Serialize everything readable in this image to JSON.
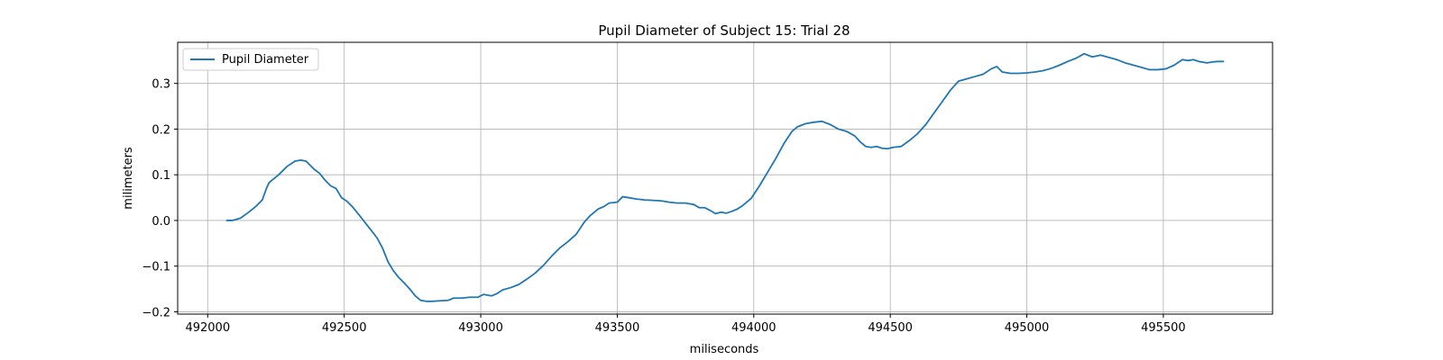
{
  "chart_data": {
    "type": "line",
    "title": "Pupil Diameter of Subject 15: Trial 28",
    "xlabel": "miliseconds",
    "ylabel": "milimeters",
    "xlim": [
      491890,
      495900
    ],
    "ylim": [
      -0.205,
      0.39
    ],
    "xticks": [
      492000,
      492500,
      493000,
      493500,
      494000,
      494500,
      495000,
      495500
    ],
    "yticks": [
      -0.2,
      -0.1,
      0.0,
      0.1,
      0.2,
      0.3
    ],
    "grid": true,
    "legend_position": "upper-left",
    "series": [
      {
        "name": "Pupil Diameter",
        "color": "#1f77b4",
        "x": [
          492070,
          492090,
          492120,
          492150,
          492175,
          492200,
          492215,
          492225,
          492235,
          492260,
          492290,
          492320,
          492340,
          492360,
          492390,
          492410,
          492430,
          492450,
          492470,
          492490,
          492510,
          492530,
          492560,
          492590,
          492620,
          492640,
          492660,
          492680,
          492700,
          492720,
          492740,
          492760,
          492780,
          492800,
          492820,
          492850,
          492880,
          492900,
          492930,
          492960,
          492990,
          493010,
          493040,
          493060,
          493080,
          493110,
          493140,
          493170,
          493200,
          493230,
          493260,
          493290,
          493320,
          493350,
          493380,
          493400,
          493430,
          493450,
          493470,
          493500,
          493520,
          493540,
          493570,
          493600,
          493630,
          493660,
          493690,
          493720,
          493750,
          493780,
          493800,
          493820,
          493840,
          493860,
          493880,
          493900,
          493920,
          493940,
          493960,
          493990,
          494020,
          494050,
          494080,
          494110,
          494140,
          494160,
          494190,
          494220,
          494250,
          494280,
          494310,
          494340,
          494370,
          494390,
          494410,
          494430,
          494450,
          494470,
          494490,
          494510,
          494540,
          494570,
          494600,
          494630,
          494660,
          494690,
          494720,
          494750,
          494780,
          494810,
          494840,
          494870,
          494890,
          494910,
          494940,
          494970,
          495000,
          495030,
          495060,
          495090,
          495120,
          495150,
          495180,
          495210,
          495240,
          495270,
          495300,
          495330,
          495360,
          495390,
          495420,
          495450,
          495480,
          495510,
          495540,
          495570,
          495590,
          495610,
          495630,
          495660,
          495680,
          495700,
          495720
        ],
        "y": [
          0.0,
          0.0,
          0.005,
          0.018,
          0.03,
          0.045,
          0.07,
          0.083,
          0.088,
          0.1,
          0.118,
          0.13,
          0.132,
          0.13,
          0.112,
          0.103,
          0.088,
          0.076,
          0.07,
          0.05,
          0.042,
          0.03,
          0.008,
          -0.015,
          -0.038,
          -0.06,
          -0.09,
          -0.11,
          -0.125,
          -0.137,
          -0.15,
          -0.165,
          -0.175,
          -0.177,
          -0.177,
          -0.176,
          -0.175,
          -0.17,
          -0.17,
          -0.168,
          -0.168,
          -0.162,
          -0.165,
          -0.16,
          -0.152,
          -0.147,
          -0.14,
          -0.128,
          -0.115,
          -0.098,
          -0.078,
          -0.06,
          -0.046,
          -0.03,
          -0.003,
          0.01,
          0.025,
          0.03,
          0.038,
          0.04,
          0.052,
          0.05,
          0.047,
          0.045,
          0.044,
          0.043,
          0.04,
          0.038,
          0.038,
          0.035,
          0.028,
          0.028,
          0.022,
          0.015,
          0.018,
          0.016,
          0.02,
          0.025,
          0.033,
          0.048,
          0.075,
          0.105,
          0.135,
          0.168,
          0.195,
          0.205,
          0.212,
          0.215,
          0.217,
          0.21,
          0.2,
          0.195,
          0.185,
          0.172,
          0.162,
          0.16,
          0.162,
          0.158,
          0.157,
          0.16,
          0.162,
          0.175,
          0.19,
          0.21,
          0.235,
          0.26,
          0.285,
          0.305,
          0.31,
          0.315,
          0.32,
          0.332,
          0.337,
          0.325,
          0.322,
          0.322,
          0.323,
          0.325,
          0.328,
          0.333,
          0.34,
          0.348,
          0.355,
          0.365,
          0.358,
          0.362,
          0.357,
          0.352,
          0.345,
          0.34,
          0.335,
          0.33,
          0.33,
          0.332,
          0.34,
          0.352,
          0.35,
          0.352,
          0.348,
          0.345,
          0.347,
          0.348,
          0.348
        ]
      }
    ]
  }
}
